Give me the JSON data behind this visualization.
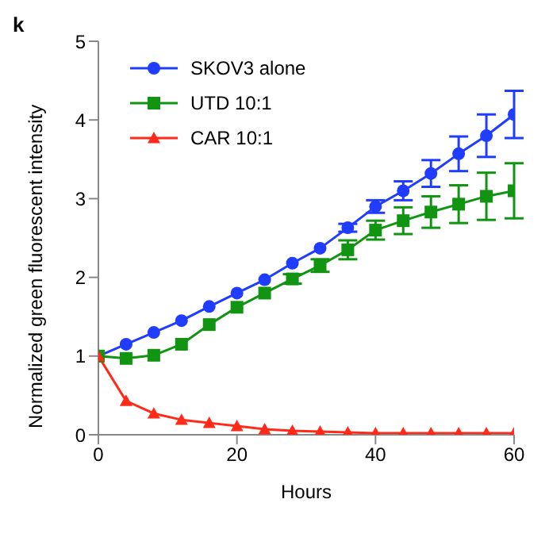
{
  "chart_data": {
    "type": "line",
    "title": "k",
    "xlabel": "Hours",
    "ylabel": "Normalized green fluorescent intensity",
    "x": [
      0,
      4,
      8,
      12,
      16,
      20,
      24,
      28,
      32,
      36,
      40,
      44,
      48,
      52,
      56,
      60
    ],
    "xlim": [
      0,
      60
    ],
    "xticks": [
      0,
      20,
      40,
      60
    ],
    "ylim": [
      0,
      5
    ],
    "yticks": [
      0,
      1,
      2,
      3,
      4,
      5
    ],
    "grid": false,
    "legend": "top left",
    "line_style": "solid",
    "series": [
      {
        "name": "SKOV3 alone",
        "color": "#1f3cff",
        "marker": "circle",
        "values": [
          1,
          1.15,
          1.3,
          1.45,
          1.63,
          1.8,
          1.97,
          2.18,
          2.37,
          2.63,
          2.9,
          3.1,
          3.32,
          3.57,
          3.8,
          4.07
        ],
        "errors": [
          null,
          null,
          null,
          null,
          null,
          null,
          null,
          null,
          null,
          0.05,
          0.08,
          0.12,
          0.17,
          0.22,
          0.27,
          0.3
        ]
      },
      {
        "name": "UTD 10:1",
        "color": "#119411",
        "marker": "square",
        "values": [
          1,
          0.97,
          1.01,
          1.15,
          1.4,
          1.62,
          1.8,
          1.98,
          2.15,
          2.35,
          2.6,
          2.72,
          2.83,
          2.93,
          3.03,
          3.1
        ],
        "errors": [
          null,
          null,
          null,
          null,
          null,
          null,
          null,
          0.06,
          0.08,
          0.12,
          0.12,
          0.17,
          0.2,
          0.24,
          0.3,
          0.35
        ]
      },
      {
        "name": "CAR 10:1",
        "color": "#ff2a1a",
        "marker": "triangle",
        "values": [
          1,
          0.43,
          0.27,
          0.19,
          0.15,
          0.11,
          0.07,
          0.05,
          0.04,
          0.03,
          0.02,
          0.02,
          0.02,
          0.02,
          0.02,
          0.02
        ]
      }
    ]
  }
}
